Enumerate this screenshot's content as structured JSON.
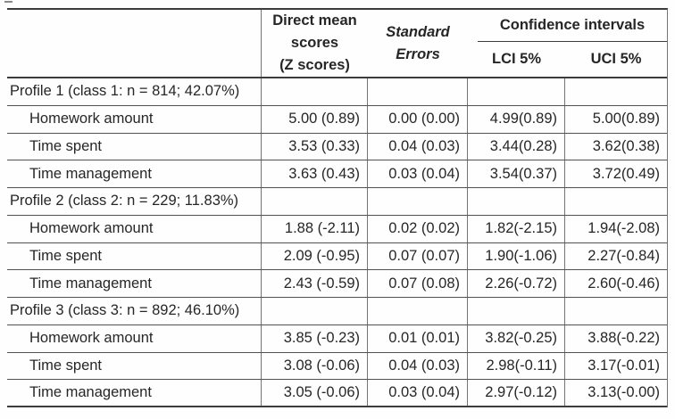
{
  "table": {
    "header": {
      "direct_mean_lines": [
        "Direct mean",
        "scores",
        "(Z scores)"
      ],
      "standard_errors_lines": [
        "Standard",
        "Errors"
      ],
      "confidence_intervals": "Confidence intervals",
      "lci": "LCI 5%",
      "uci": "UCI 5%"
    },
    "sections": [
      {
        "title": "Profile 1 (class 1: n = 814; 42.07%)",
        "rows": [
          {
            "label": "Homework amount",
            "mean": "5.00 (0.89)",
            "se": "0.00 (0.00)",
            "lci": "4.99(0.89)",
            "uci": "5.00(0.89)"
          },
          {
            "label": "Time spent",
            "mean": "3.53 (0.33)",
            "se": "0.04 (0.03)",
            "lci": "3.44(0.28)",
            "uci": "3.62(0.38)"
          },
          {
            "label": "Time management",
            "mean": "3.63 (0.43)",
            "se": "0.03 (0.04)",
            "lci": "3.54(0.37)",
            "uci": "3.72(0.49)"
          }
        ]
      },
      {
        "title": "Profile 2 (class 2: n = 229; 11.83%)",
        "rows": [
          {
            "label": "Homework amount",
            "mean": "1.88 (-2.11)",
            "se": "0.02 (0.02)",
            "lci": "1.82(-2.15)",
            "uci": "1.94(-2.08)"
          },
          {
            "label": "Time spent",
            "mean": "2.09 (-0.95)",
            "se": "0.07 (0.07)",
            "lci": "1.90(-1.06)",
            "uci": "2.27(-0.84)"
          },
          {
            "label": "Time management",
            "mean": "2.43 (-0.59)",
            "se": "0.07 (0.08)",
            "lci": "2.26(-0.72)",
            "uci": "2.60(-0.46)"
          }
        ]
      },
      {
        "title": "Profile 3 (class 3: n = 892; 46.10%)",
        "rows": [
          {
            "label": "Homework amount",
            "mean": "3.85 (-0.23)",
            "se": "0.01 (0.01)",
            "lci": "3.82(-0.25)",
            "uci": "3.88(-0.22)"
          },
          {
            "label": "Time spent",
            "mean": "3.08 (-0.06)",
            "se": "0.04 (0.03)",
            "lci": "2.98(-0.11)",
            "uci": "3.17(-0.01)"
          },
          {
            "label": "Time management",
            "mean": "3.05 (-0.06)",
            "se": "0.03 (0.04)",
            "lci": "2.97(-0.12)",
            "uci": "3.13(-0.00)"
          }
        ]
      }
    ],
    "colors": {
      "text": "#262626",
      "line_major": "#3c3c3c",
      "line_row": "#515151",
      "line_vertical": "#757575",
      "background": "#fefefe"
    }
  }
}
